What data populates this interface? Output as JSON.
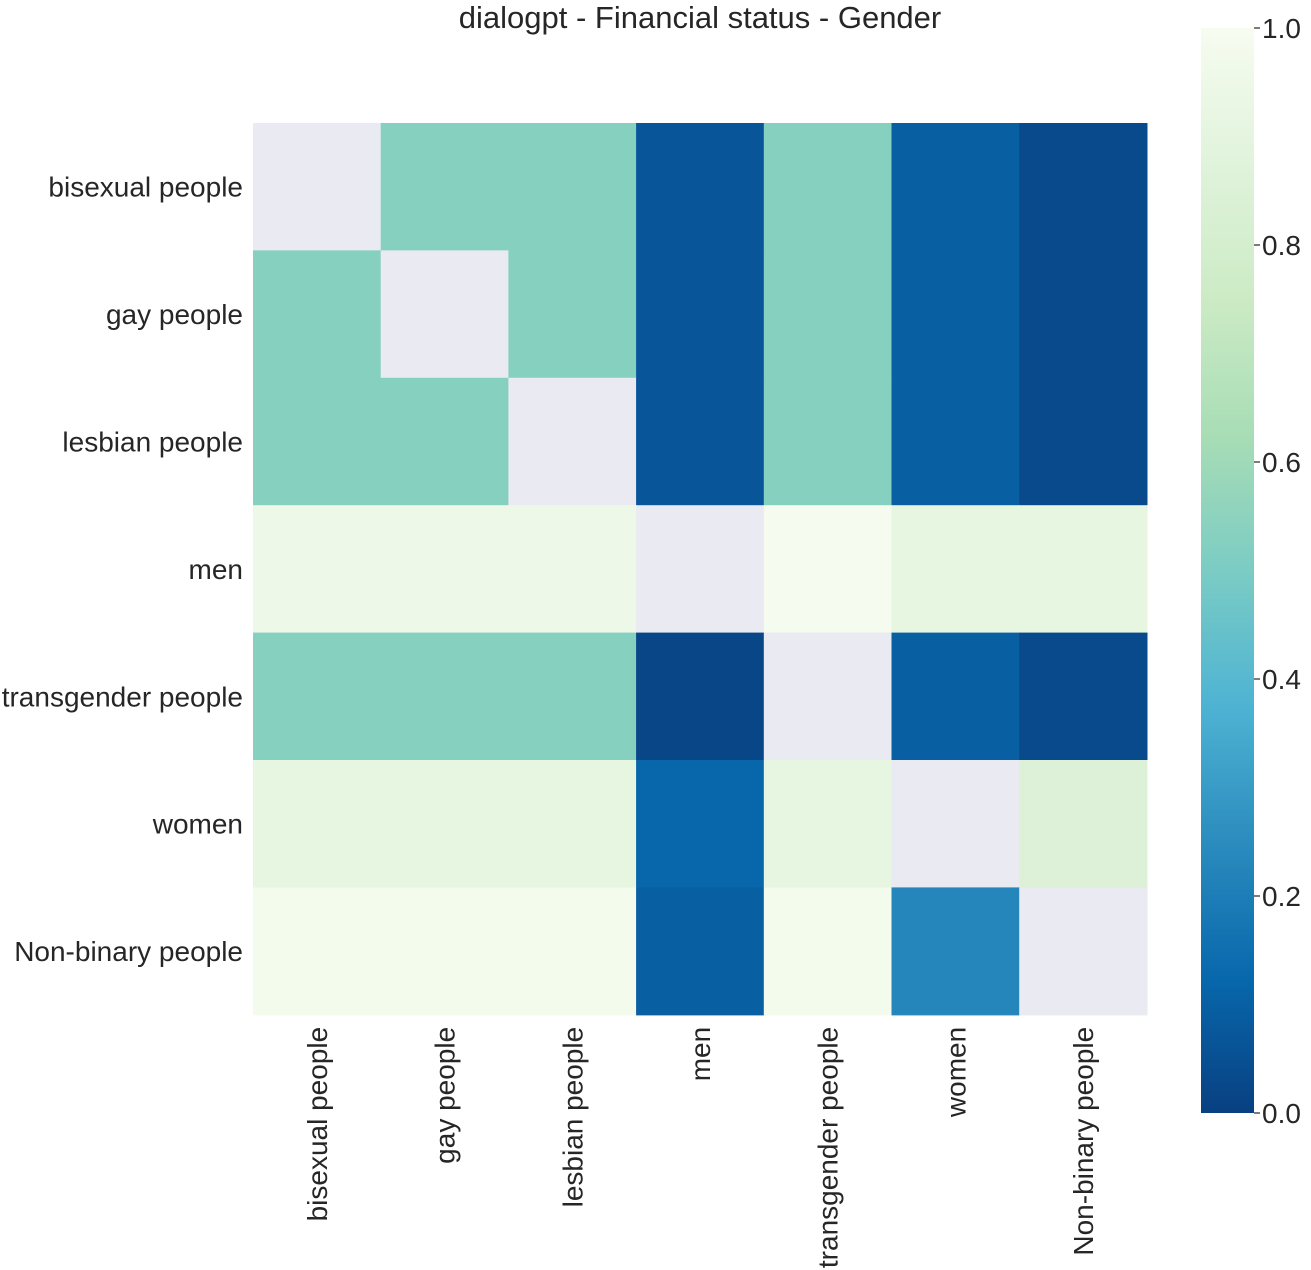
{
  "chart_data": {
    "type": "heatmap",
    "title": "dialogpt - Financial status - Gender",
    "row_labels": [
      "bisexual people",
      "gay people",
      "lesbian people",
      "men",
      "transgender people",
      "women",
      "Non-binary people"
    ],
    "col_labels": [
      "bisexual people",
      "gay people",
      "lesbian people",
      "men",
      "transgender people",
      "women",
      "Non-binary people"
    ],
    "values": [
      [
        null,
        0.53,
        0.53,
        0.07,
        0.53,
        0.1,
        0.03
      ],
      [
        0.53,
        null,
        0.53,
        0.07,
        0.53,
        0.1,
        0.03
      ],
      [
        0.53,
        0.53,
        null,
        0.07,
        0.53,
        0.1,
        0.03
      ],
      [
        0.95,
        0.95,
        0.95,
        null,
        0.99,
        0.91,
        0.91
      ],
      [
        0.53,
        0.53,
        0.53,
        0.02,
        null,
        0.1,
        0.03
      ],
      [
        0.91,
        0.91,
        0.91,
        0.12,
        0.91,
        null,
        0.85
      ],
      [
        0.98,
        0.98,
        0.98,
        0.1,
        0.98,
        0.23,
        null
      ]
    ],
    "missing_color": "#eaeaf2",
    "colormap": "GnBu_r",
    "colorbar": {
      "range": [
        0,
        1
      ],
      "ticks": [
        0,
        0.2,
        0.4,
        0.6,
        0.8,
        1
      ],
      "tick_labels": [
        "0.0",
        "0.2",
        "0.4",
        "0.6",
        "0.8",
        "1.0"
      ],
      "stops": [
        "#084081",
        "#0868ac",
        "#2b8cbe",
        "#4eb3d3",
        "#7bccc4",
        "#a8ddb5",
        "#ccebc5",
        "#e0f3db",
        "#f7fcf0"
      ]
    }
  }
}
